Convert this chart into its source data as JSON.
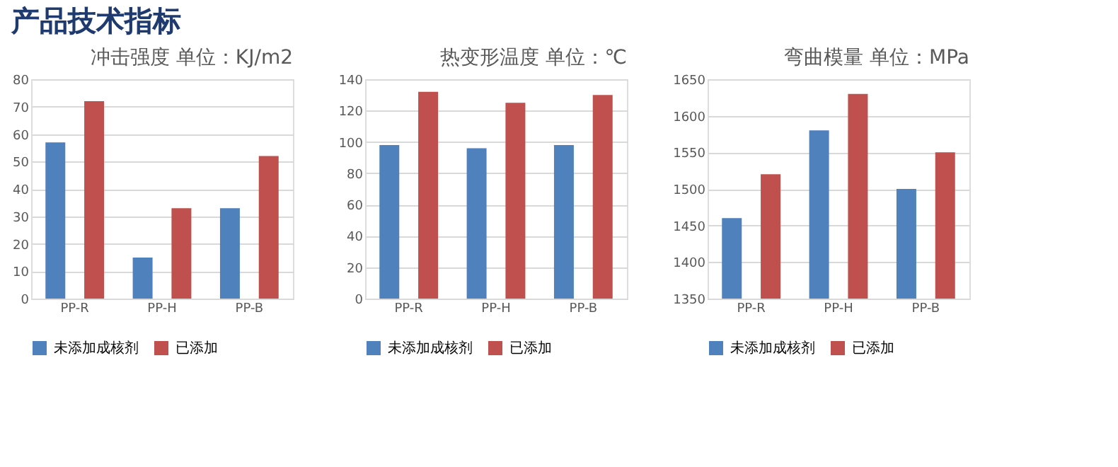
{
  "chart_data": [
    {
      "type": "bar",
      "annotations": [
        "产品技术指标"
      ],
      "title": "冲击强度 单位：KJ/m2",
      "categories": [
        "PP-R",
        "PP-H",
        "PP-B"
      ],
      "series": [
        {
          "name": "未添加成核剂",
          "color": "#4f81bd",
          "values": [
            57,
            15,
            33
          ]
        },
        {
          "name": "已添加",
          "color": "#c0504d",
          "values": [
            72,
            33,
            52
          ]
        }
      ],
      "ylim": [
        0,
        80
      ],
      "yticks": [
        0,
        10,
        20,
        30,
        40,
        50,
        60,
        70,
        80
      ],
      "grid": "y",
      "legend": "bottom"
    },
    {
      "type": "bar",
      "title": "热变形温度   单位：℃",
      "categories": [
        "PP-R",
        "PP-H",
        "PP-B"
      ],
      "series": [
        {
          "name": "未添加成核剂",
          "color": "#4f81bd",
          "values": [
            98,
            96,
            98
          ]
        },
        {
          "name": "已添加",
          "color": "#c0504d",
          "values": [
            132,
            125,
            130
          ]
        }
      ],
      "ylim": [
        0,
        140
      ],
      "yticks": [
        0,
        20,
        40,
        60,
        80,
        100,
        120,
        140
      ],
      "grid": "y",
      "legend": "bottom"
    },
    {
      "type": "bar",
      "title": "弯曲模量  单位：MPa",
      "categories": [
        "PP-R",
        "PP-H",
        "PP-B"
      ],
      "series": [
        {
          "name": "未添加成核剂",
          "color": "#4f81bd",
          "values": [
            1460,
            1580,
            1500
          ]
        },
        {
          "name": "已添加",
          "color": "#c0504d",
          "values": [
            1520,
            1630,
            1550
          ]
        }
      ],
      "ylim": [
        1350,
        1650
      ],
      "yticks": [
        1350,
        1400,
        1450,
        1500,
        1550,
        1600,
        1650
      ],
      "grid": "y",
      "legend": "bottom"
    }
  ]
}
